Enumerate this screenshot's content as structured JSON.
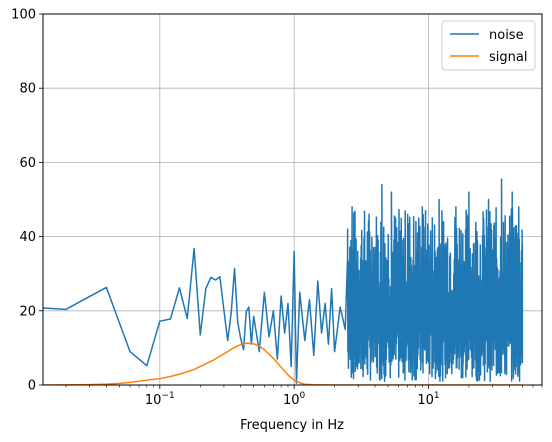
{
  "chart_data": {
    "type": "line",
    "xlabel": "Frequency in Hz",
    "ylabel": "",
    "xscale": "log",
    "xlim": [
      0.0135,
      70
    ],
    "ylim": [
      0,
      100
    ],
    "grid": true,
    "legend_position": "top-right",
    "yticks": [
      0,
      20,
      40,
      60,
      80,
      100
    ],
    "xticks": [
      {
        "value": 0.1,
        "base": "10",
        "exp": "−1"
      },
      {
        "value": 1,
        "base": "10",
        "exp": "0"
      },
      {
        "value": 10,
        "base": "10",
        "exp": "1"
      }
    ],
    "series": [
      {
        "name": "noise",
        "color": "#1f77b4",
        "points": [
          [
            0.01,
            21.0
          ],
          [
            0.02,
            20.4
          ],
          [
            0.04,
            26.3
          ],
          [
            0.06,
            9.0
          ],
          [
            0.08,
            5.2
          ],
          [
            0.1,
            17.2
          ],
          [
            0.12,
            17.8
          ],
          [
            0.14,
            26.2
          ],
          [
            0.16,
            17.9
          ],
          [
            0.18,
            36.8
          ],
          [
            0.2,
            13.5
          ],
          [
            0.22,
            26.0
          ],
          [
            0.24,
            29.0
          ],
          [
            0.26,
            28.3
          ],
          [
            0.28,
            29.2
          ],
          [
            0.3,
            20.2
          ],
          [
            0.32,
            12.0
          ],
          [
            0.34,
            19.5
          ],
          [
            0.36,
            31.4
          ],
          [
            0.38,
            17.0
          ],
          [
            0.4,
            12.5
          ],
          [
            0.42,
            9.5
          ],
          [
            0.44,
            19.8
          ],
          [
            0.46,
            21.0
          ],
          [
            0.48,
            11.0
          ],
          [
            0.5,
            18.5
          ],
          [
            0.55,
            9.0
          ],
          [
            0.6,
            25.0
          ],
          [
            0.65,
            13.0
          ],
          [
            0.7,
            20.0
          ],
          [
            0.75,
            7.0
          ],
          [
            0.8,
            24.0
          ],
          [
            0.85,
            14.0
          ],
          [
            0.9,
            22.0
          ],
          [
            0.95,
            5.0
          ],
          [
            1.0,
            36.0
          ],
          [
            1.04,
            0.5
          ],
          [
            1.1,
            25.0
          ],
          [
            1.2,
            12.0
          ],
          [
            1.3,
            23.0
          ],
          [
            1.4,
            8.0
          ],
          [
            1.5,
            28.0
          ],
          [
            1.6,
            14.0
          ],
          [
            1.7,
            22.0
          ],
          [
            1.8,
            11.0
          ],
          [
            1.9,
            26.0
          ],
          [
            2.0,
            9.0
          ],
          [
            2.2,
            21.0
          ],
          [
            2.4,
            15.0
          ],
          [
            2.5,
            42.0
          ],
          [
            2.6,
            12.0
          ],
          [
            2.7,
            48.0
          ],
          [
            2.8,
            10.0
          ],
          [
            3.0,
            26.0
          ],
          [
            3.5,
            20.0
          ],
          [
            4.0,
            30.0
          ],
          [
            4.5,
            54.0
          ],
          [
            5.0,
            12.0
          ],
          [
            5.3,
            52.0
          ],
          [
            6.0,
            8.0
          ],
          [
            7.0,
            46.0
          ],
          [
            8.0,
            10.0
          ],
          [
            9.0,
            48.0
          ],
          [
            10.0,
            6.0
          ],
          [
            12.0,
            50.0
          ],
          [
            14.0,
            8.0
          ],
          [
            16.0,
            48.0
          ],
          [
            18.0,
            2.0
          ],
          [
            20.0,
            52.0
          ],
          [
            24.0,
            5.0
          ],
          [
            28.0,
            50.0
          ],
          [
            32.0,
            4.0
          ],
          [
            35.0,
            55.5
          ],
          [
            38.0,
            6.0
          ],
          [
            42.0,
            52.0
          ],
          [
            45.0,
            5.0
          ],
          [
            47.0,
            48.0
          ],
          [
            49.0,
            8.0
          ],
          [
            50.0,
            38.0
          ]
        ],
        "dense_band": {
          "x_start": 2.5,
          "x_end": 50,
          "y_low": 1,
          "y_high": 48
        }
      },
      {
        "name": "signal",
        "color": "#ff7f0e",
        "points": [
          [
            0.0135,
            0.0
          ],
          [
            0.02,
            0.02
          ],
          [
            0.03,
            0.1
          ],
          [
            0.04,
            0.25
          ],
          [
            0.05,
            0.45
          ],
          [
            0.06,
            0.7
          ],
          [
            0.07,
            1.0
          ],
          [
            0.08,
            1.3
          ],
          [
            0.1,
            1.7
          ],
          [
            0.12,
            2.3
          ],
          [
            0.15,
            3.2
          ],
          [
            0.18,
            4.2
          ],
          [
            0.2,
            5.0
          ],
          [
            0.25,
            6.7
          ],
          [
            0.3,
            8.4
          ],
          [
            0.35,
            9.9
          ],
          [
            0.4,
            10.9
          ],
          [
            0.45,
            11.3
          ],
          [
            0.5,
            11.1
          ],
          [
            0.55,
            10.5
          ],
          [
            0.6,
            9.5
          ],
          [
            0.7,
            7.2
          ],
          [
            0.8,
            4.8
          ],
          [
            0.9,
            2.7
          ],
          [
            1.0,
            1.3
          ],
          [
            1.1,
            0.6
          ],
          [
            1.2,
            0.2
          ],
          [
            1.4,
            0.05
          ],
          [
            2.0,
            0.0
          ],
          [
            5.0,
            0.0
          ],
          [
            10.0,
            0.0
          ],
          [
            20.0,
            0.0
          ],
          [
            50.0,
            0.0
          ]
        ]
      }
    ]
  }
}
